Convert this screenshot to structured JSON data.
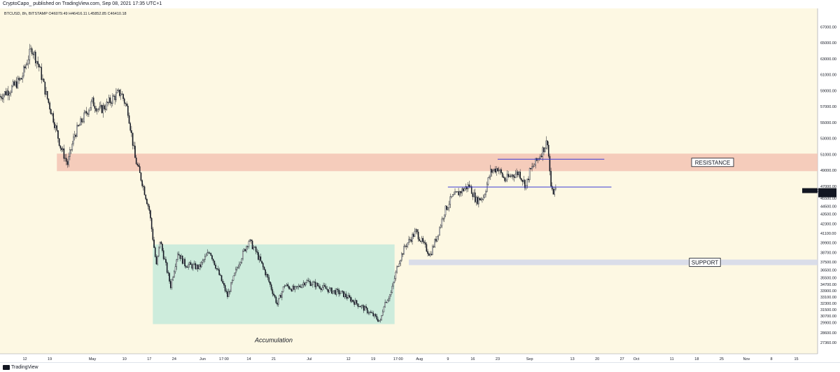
{
  "header": {
    "publish_line": "CryptoCapo_ published on TradingView.com, Sep 08, 2021 17:35 UTC+1"
  },
  "legend": {
    "text": "BTCUSD, 8h, BITSTAMP  O46079.49  H46416.11  L45852.85  C46410.18"
  },
  "footer": {
    "brand": "TradingView"
  },
  "colors": {
    "background": "#fdf8e3",
    "candle": "#131722",
    "resistance_zone": "#f3c4b4",
    "support_zone": "#d3d8ea",
    "accumulation_zone": "#c4eadb",
    "level_line": "#3a3ad6",
    "price_tag": "#131722"
  },
  "chart_data": {
    "type": "candlestick",
    "symbol": "BTCUSD",
    "timeframe": "8h",
    "exchange": "BITSTAMP",
    "ylim": [
      26500,
      68800
    ],
    "price_ticks": [
      {
        "value": 27360,
        "label": "27360.00"
      },
      {
        "value": 28600,
        "label": "28600.00"
      },
      {
        "value": 29900,
        "label": "29900.00"
      },
      {
        "value": 30700,
        "label": "30700.00"
      },
      {
        "value": 31500,
        "label": "31500.00"
      },
      {
        "value": 32300,
        "label": "32300.00"
      },
      {
        "value": 33100,
        "label": "33100.00"
      },
      {
        "value": 33900,
        "label": "33900.00"
      },
      {
        "value": 34700,
        "label": "34700.00"
      },
      {
        "value": 35500,
        "label": "35500.00"
      },
      {
        "value": 36500,
        "label": "36500.00"
      },
      {
        "value": 37500,
        "label": "37500.00"
      },
      {
        "value": 38700,
        "label": "38700.00"
      },
      {
        "value": 39900,
        "label": "39900.00"
      },
      {
        "value": 41100,
        "label": "41100.00"
      },
      {
        "value": 42300,
        "label": "42300.00"
      },
      {
        "value": 43500,
        "label": "43500.00"
      },
      {
        "value": 44500,
        "label": "44500.00"
      },
      {
        "value": 45500,
        "label": "45500.00"
      },
      {
        "value": 47000,
        "label": "47000.00"
      },
      {
        "value": 49000,
        "label": "49000.00"
      },
      {
        "value": 51000,
        "label": "51000.00"
      },
      {
        "value": 53000,
        "label": "53000.00"
      },
      {
        "value": 55000,
        "label": "55000.00"
      },
      {
        "value": 57000,
        "label": "57000.00"
      },
      {
        "value": 59000,
        "label": "59000.00"
      },
      {
        "value": 61000,
        "label": "61000.00"
      },
      {
        "value": 63000,
        "label": "63000.00"
      },
      {
        "value": 65000,
        "label": "65000.00"
      },
      {
        "value": 67000,
        "label": "67000.00"
      }
    ],
    "date_ticks": [
      {
        "label": "12",
        "date": "2021-04-12"
      },
      {
        "label": "19",
        "date": "2021-04-19"
      },
      {
        "label": "May",
        "date": "2021-05-01"
      },
      {
        "label": "10",
        "date": "2021-05-10"
      },
      {
        "label": "17",
        "date": "2021-05-17"
      },
      {
        "label": "24",
        "date": "2021-05-24"
      },
      {
        "label": "Jun",
        "date": "2021-06-01"
      },
      {
        "label": "17:00",
        "date": "2021-06-07"
      },
      {
        "label": "14",
        "date": "2021-06-14"
      },
      {
        "label": "21",
        "date": "2021-06-21"
      },
      {
        "label": "Jul",
        "date": "2021-07-01"
      },
      {
        "label": "12",
        "date": "2021-07-12"
      },
      {
        "label": "19",
        "date": "2021-07-19"
      },
      {
        "label": "17:00",
        "date": "2021-07-26"
      },
      {
        "label": "Aug",
        "date": "2021-08-01"
      },
      {
        "label": "9",
        "date": "2021-08-09"
      },
      {
        "label": "16",
        "date": "2021-08-16"
      },
      {
        "label": "23",
        "date": "2021-08-23"
      },
      {
        "label": "Sep",
        "date": "2021-09-01"
      },
      {
        "label": "13",
        "date": "2021-09-13"
      },
      {
        "label": "20",
        "date": "2021-09-20"
      },
      {
        "label": "27",
        "date": "2021-09-27"
      },
      {
        "label": "Oct",
        "date": "2021-10-01"
      },
      {
        "label": "11",
        "date": "2021-10-11"
      },
      {
        "label": "18",
        "date": "2021-10-18"
      },
      {
        "label": "25",
        "date": "2021-10-25"
      },
      {
        "label": "Nov",
        "date": "2021-11-01"
      },
      {
        "label": "8",
        "date": "2021-11-08"
      },
      {
        "label": "15",
        "date": "2021-11-15"
      }
    ],
    "xlim": [
      "2021-04-05",
      "2021-11-21"
    ],
    "price_path": [
      {
        "date": "2021-04-05",
        "price": 58300
      },
      {
        "date": "2021-04-08",
        "price": 59200
      },
      {
        "date": "2021-04-11",
        "price": 60500
      },
      {
        "date": "2021-04-13",
        "price": 63200
      },
      {
        "date": "2021-04-14",
        "price": 64300
      },
      {
        "date": "2021-04-16",
        "price": 62000
      },
      {
        "date": "2021-04-18",
        "price": 58500
      },
      {
        "date": "2021-04-20",
        "price": 55500
      },
      {
        "date": "2021-04-22",
        "price": 52000
      },
      {
        "date": "2021-04-24",
        "price": 49800
      },
      {
        "date": "2021-04-26",
        "price": 53500
      },
      {
        "date": "2021-04-28",
        "price": 55200
      },
      {
        "date": "2021-05-01",
        "price": 57600
      },
      {
        "date": "2021-05-03",
        "price": 56500
      },
      {
        "date": "2021-05-05",
        "price": 57200
      },
      {
        "date": "2021-05-07",
        "price": 58200
      },
      {
        "date": "2021-05-09",
        "price": 58800
      },
      {
        "date": "2021-05-11",
        "price": 56500
      },
      {
        "date": "2021-05-13",
        "price": 50500
      },
      {
        "date": "2021-05-15",
        "price": 47500
      },
      {
        "date": "2021-05-17",
        "price": 44000
      },
      {
        "date": "2021-05-19",
        "price": 37000
      },
      {
        "date": "2021-05-20",
        "price": 40200
      },
      {
        "date": "2021-05-23",
        "price": 34500
      },
      {
        "date": "2021-05-25",
        "price": 38700
      },
      {
        "date": "2021-05-27",
        "price": 37200
      },
      {
        "date": "2021-05-31",
        "price": 36800
      },
      {
        "date": "2021-06-03",
        "price": 38900
      },
      {
        "date": "2021-06-06",
        "price": 35500
      },
      {
        "date": "2021-06-08",
        "price": 33200
      },
      {
        "date": "2021-06-11",
        "price": 37200
      },
      {
        "date": "2021-06-14",
        "price": 40200
      },
      {
        "date": "2021-06-16",
        "price": 38800
      },
      {
        "date": "2021-06-19",
        "price": 35800
      },
      {
        "date": "2021-06-22",
        "price": 32200
      },
      {
        "date": "2021-06-24",
        "price": 34600
      },
      {
        "date": "2021-06-27",
        "price": 34000
      },
      {
        "date": "2021-06-30",
        "price": 35100
      },
      {
        "date": "2021-07-03",
        "price": 34600
      },
      {
        "date": "2021-07-07",
        "price": 33900
      },
      {
        "date": "2021-07-10",
        "price": 33600
      },
      {
        "date": "2021-07-13",
        "price": 32700
      },
      {
        "date": "2021-07-16",
        "price": 31800
      },
      {
        "date": "2021-07-19",
        "price": 30800
      },
      {
        "date": "2021-07-21",
        "price": 30000
      },
      {
        "date": "2021-07-22",
        "price": 32200
      },
      {
        "date": "2021-07-24",
        "price": 33600
      },
      {
        "date": "2021-07-26",
        "price": 37300
      },
      {
        "date": "2021-07-28",
        "price": 39500
      },
      {
        "date": "2021-07-31",
        "price": 41300
      },
      {
        "date": "2021-08-02",
        "price": 39800
      },
      {
        "date": "2021-08-04",
        "price": 38400
      },
      {
        "date": "2021-08-06",
        "price": 40800
      },
      {
        "date": "2021-08-08",
        "price": 43800
      },
      {
        "date": "2021-08-10",
        "price": 45500
      },
      {
        "date": "2021-08-13",
        "price": 46500
      },
      {
        "date": "2021-08-15",
        "price": 47100
      },
      {
        "date": "2021-08-17",
        "price": 45200
      },
      {
        "date": "2021-08-19",
        "price": 45700
      },
      {
        "date": "2021-08-21",
        "price": 48800
      },
      {
        "date": "2021-08-23",
        "price": 49300
      },
      {
        "date": "2021-08-25",
        "price": 47800
      },
      {
        "date": "2021-08-27",
        "price": 48400
      },
      {
        "date": "2021-08-29",
        "price": 48700
      },
      {
        "date": "2021-08-31",
        "price": 47000
      },
      {
        "date": "2021-09-01",
        "price": 48800
      },
      {
        "date": "2021-09-03",
        "price": 50200
      },
      {
        "date": "2021-09-05",
        "price": 51800
      },
      {
        "date": "2021-09-06",
        "price": 52700
      },
      {
        "date": "2021-09-07",
        "price": 47000
      },
      {
        "date": "2021-09-07",
        "price": 46100
      },
      {
        "date": "2021-09-08",
        "price": 46410
      }
    ],
    "zones": [
      {
        "name": "resistance",
        "label": "RESISTANCE",
        "low": 48900,
        "high": 51100,
        "from": "2021-04-21",
        "to": "2021-11-21"
      },
      {
        "name": "support",
        "label": "SUPPORT",
        "low": 37100,
        "high": 37800,
        "from": "2021-07-29",
        "to": "2021-11-21"
      },
      {
        "name": "accumulation",
        "label": "Accumulation",
        "low": 29700,
        "high": 39700,
        "from": "2021-05-18",
        "to": "2021-07-25"
      }
    ],
    "levels": [
      {
        "name": "upper",
        "price": 50400,
        "from": "2021-08-23",
        "to": "2021-09-22"
      },
      {
        "name": "lower",
        "price": 46900,
        "from": "2021-08-09",
        "to": "2021-09-24"
      }
    ],
    "last_price": {
      "label": "BTCUSD",
      "value": "46410.18",
      "countdown": "07:24:35",
      "price": 46410
    }
  }
}
